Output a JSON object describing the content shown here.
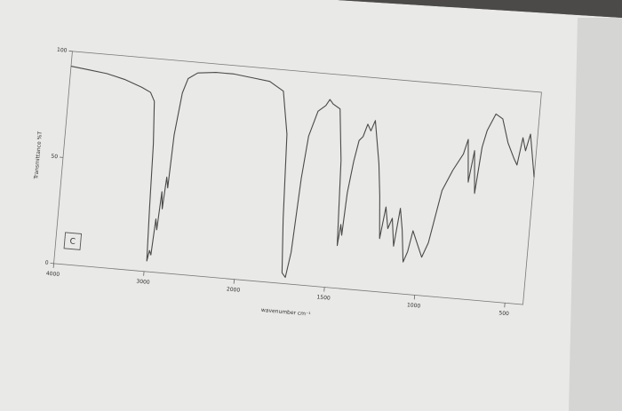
{
  "chart_data": {
    "type": "line",
    "xlabel": "wavenumber cm⁻¹",
    "ylabel": "Transmittance %T",
    "annotation": "C",
    "color": "#4a4a4a",
    "x": [
      4000,
      3800,
      3600,
      3400,
      3200,
      3100,
      3050,
      3020,
      3000,
      2980,
      2960,
      2940,
      2920,
      2900,
      2880,
      2860,
      2840,
      2820,
      2800,
      2750,
      2700,
      2600,
      2400,
      2200,
      2000,
      1900,
      1820,
      1780,
      1760,
      1740,
      1720,
      1700,
      1680,
      1660,
      1620,
      1580,
      1560,
      1540,
      1500,
      1470,
      1450,
      1440,
      1430,
      1420,
      1400,
      1380,
      1360,
      1340,
      1320,
      1300,
      1280,
      1260,
      1240,
      1220,
      1200,
      1180,
      1160,
      1140,
      1120,
      1100,
      1080,
      1060,
      1040,
      1000,
      980,
      950,
      900,
      850,
      800,
      780,
      760,
      740,
      720,
      700,
      680,
      640,
      600,
      560,
      520,
      500,
      480,
      460,
      440,
      420,
      400
    ],
    "values": [
      93,
      92,
      91,
      89,
      86,
      84,
      80,
      60,
      30,
      5,
      10,
      8,
      25,
      20,
      38,
      30,
      45,
      40,
      65,
      85,
      92,
      95,
      96,
      96,
      95,
      94,
      90,
      70,
      30,
      5,
      3,
      15,
      50,
      70,
      82,
      85,
      88,
      86,
      84,
      60,
      20,
      30,
      25,
      45,
      60,
      70,
      72,
      78,
      75,
      80,
      70,
      60,
      45,
      25,
      40,
      30,
      35,
      22,
      40,
      30,
      15,
      20,
      30,
      22,
      18,
      25,
      50,
      60,
      68,
      75,
      55,
      70,
      50,
      72,
      80,
      88,
      86,
      75,
      68,
      65,
      78,
      72,
      80,
      70,
      60
    ],
    "xlim": [
      4000,
      400
    ],
    "ylim": [
      0,
      100
    ],
    "xticks": [
      4000,
      3000,
      2000,
      1500,
      1000,
      500
    ],
    "yticks": [
      0,
      50,
      100
    ]
  }
}
